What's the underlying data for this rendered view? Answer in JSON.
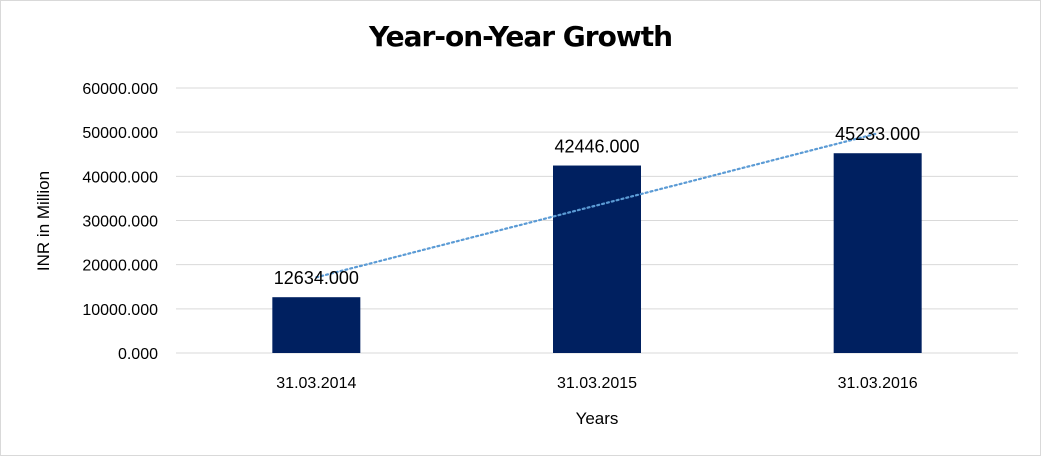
{
  "chart_data": {
    "type": "bar",
    "title": "Year-on-Year Growth",
    "xlabel": "Years",
    "ylabel": "INR in Million",
    "categories": [
      "31.03.2014",
      "31.03.2015",
      "31.03.2016"
    ],
    "values": [
      12634,
      42446,
      45233
    ],
    "value_labels": [
      "12634.000",
      "42446.000",
      "45233.000"
    ],
    "ylim": [
      0,
      60000
    ],
    "yticks": [
      0,
      10000,
      20000,
      30000,
      40000,
      50000,
      60000
    ],
    "ytick_labels": [
      "0.000",
      "10000.000",
      "20000.000",
      "30000.000",
      "40000.000",
      "50000.000",
      "60000.000"
    ],
    "trendline": {
      "type": "linear",
      "style": "dotted",
      "color": "#5b9bd5"
    },
    "bar_color": "#002060",
    "gridlines": true,
    "legend": false
  }
}
